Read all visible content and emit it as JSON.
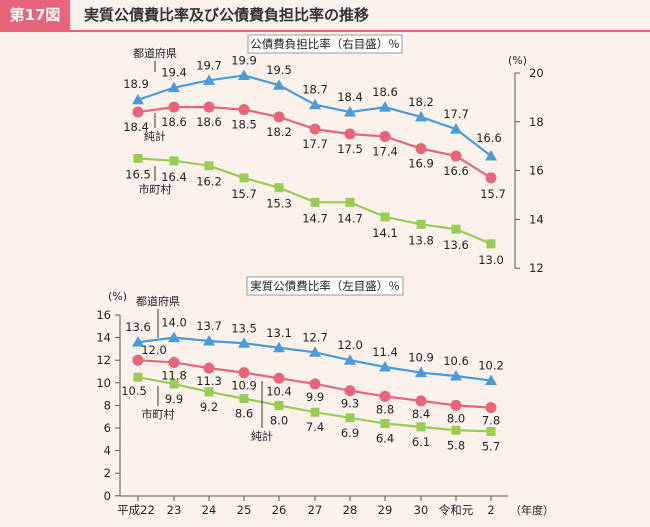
{
  "header": {
    "figure_label": "第17図",
    "title": "実質公債費比率及び公債費負担比率の推移"
  },
  "chart_data": [
    {
      "type": "line",
      "title": "公債費負担比率（右目盛）％",
      "ylabel": "(%)",
      "ylim": [
        12,
        20
      ],
      "yticks": [
        "12",
        "14",
        "16",
        "18",
        "20"
      ],
      "categories": [
        "平成22",
        "23",
        "24",
        "25",
        "26",
        "27",
        "28",
        "29",
        "30",
        "令和元",
        "2"
      ],
      "series": [
        {
          "name": "都道府県",
          "color": "#4a9bd9",
          "marker": "triangle",
          "values": [
            18.9,
            19.4,
            19.7,
            19.9,
            19.5,
            18.7,
            18.4,
            18.6,
            18.2,
            17.7,
            16.6
          ]
        },
        {
          "name": "純計",
          "color": "#e8647a",
          "marker": "circle",
          "values": [
            18.4,
            18.6,
            18.6,
            18.5,
            18.2,
            17.7,
            17.5,
            17.4,
            16.9,
            16.6,
            15.7
          ]
        },
        {
          "name": "市町村",
          "color": "#99cc55",
          "marker": "square",
          "values": [
            16.5,
            16.4,
            16.2,
            15.7,
            15.3,
            14.7,
            14.7,
            14.1,
            13.8,
            13.6,
            13.0
          ]
        }
      ]
    },
    {
      "type": "line",
      "title": "実質公債費比率（左目盛）％",
      "ylabel": "(%)",
      "xlabel": "（年度）",
      "ylim": [
        0,
        16
      ],
      "yticks": [
        "0",
        "2",
        "4",
        "6",
        "8",
        "10",
        "12",
        "14",
        "16"
      ],
      "categories": [
        "平成22",
        "23",
        "24",
        "25",
        "26",
        "27",
        "28",
        "29",
        "30",
        "令和元",
        "2"
      ],
      "series": [
        {
          "name": "都道府県",
          "color": "#4a9bd9",
          "marker": "triangle",
          "values": [
            13.6,
            14.0,
            13.7,
            13.5,
            13.1,
            12.7,
            12.0,
            11.4,
            10.9,
            10.6,
            10.2
          ]
        },
        {
          "name": "純計",
          "color": "#e8647a",
          "marker": "circle",
          "values": [
            12.0,
            11.8,
            11.3,
            10.9,
            10.4,
            9.9,
            9.3,
            8.8,
            8.4,
            8.0,
            7.8
          ]
        },
        {
          "name": "市町村",
          "color": "#99cc55",
          "marker": "square",
          "values": [
            10.5,
            9.9,
            9.2,
            8.6,
            8.0,
            7.4,
            6.9,
            6.4,
            6.1,
            5.8,
            5.7
          ]
        }
      ]
    }
  ]
}
